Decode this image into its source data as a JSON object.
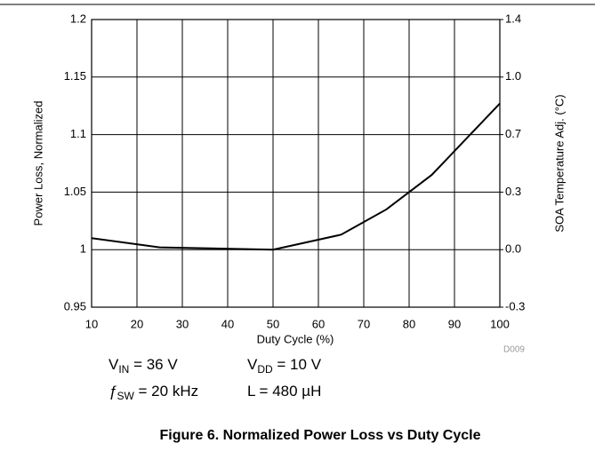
{
  "chart_data": {
    "type": "line",
    "title": "Figure 6. Normalized Power Loss vs Duty Cycle",
    "xlabel": "Duty Cycle (%)",
    "ylabel": "Power Loss, Normalized",
    "y2label": "SOA Temperature Adj. (°C)",
    "figure_id": "D009",
    "x": [
      10,
      25,
      50,
      65,
      75,
      85,
      100
    ],
    "series": [
      {
        "color": "#000000",
        "values": [
          1.01,
          1.002,
          1.0,
          1.013,
          1.035,
          1.065,
          1.127
        ]
      }
    ],
    "xlim": [
      10,
      100
    ],
    "xticks": [
      10,
      20,
      30,
      40,
      50,
      60,
      70,
      80,
      90,
      100
    ],
    "ylim": [
      0.95,
      1.2
    ],
    "yticks": [
      0.95,
      1,
      1.05,
      1.1,
      1.15,
      1.2
    ],
    "y2lim": [
      -0.34,
      1.36
    ],
    "y2ticks": [
      {
        "value": -0.34,
        "label": "-0.3"
      },
      {
        "value": 0,
        "label": "0.0"
      },
      {
        "value": 0.34,
        "label": "0.3"
      },
      {
        "value": 0.68,
        "label": "0.7"
      },
      {
        "value": 1.02,
        "label": "1.0"
      },
      {
        "value": 1.36,
        "label": "1.4"
      }
    ],
    "grid": true,
    "conditions": [
      {
        "symbol": "V",
        "sub": "IN",
        "text": " = 36 V"
      },
      {
        "symbol": "V",
        "sub": "DD",
        "text": " = 10 V"
      },
      {
        "symbol": "ƒ",
        "sub": "SW",
        "text": " = 20 kHz"
      },
      {
        "symbol": "L",
        "sub": "",
        "text": " = 480 µH"
      }
    ]
  }
}
